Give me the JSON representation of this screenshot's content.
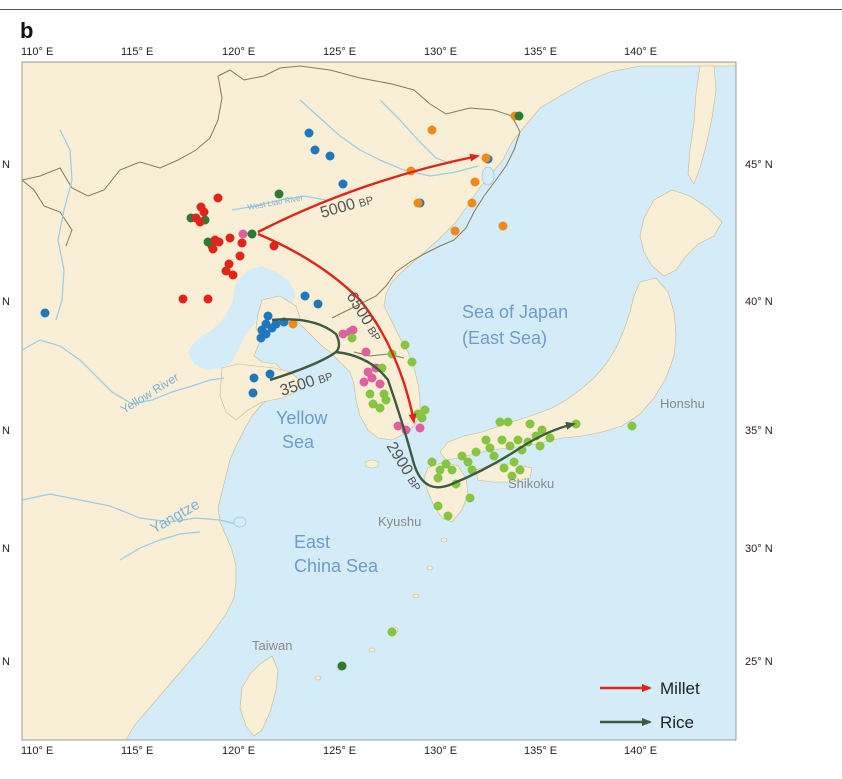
{
  "panel_label": "b",
  "longitude_ticks": [
    "110° E",
    "115° E",
    "120° E",
    "125° E",
    "130° E",
    "135° E",
    "140° E"
  ],
  "latitude_ticks_left": [
    "N",
    "N",
    "N",
    "N",
    "N"
  ],
  "latitude_ticks_right": [
    "45° N",
    "40° N",
    "35° N",
    "30° N",
    "25° N"
  ],
  "place_labels": {
    "sea_of_japan_1": "Sea of Japan",
    "sea_of_japan_2": "(East Sea)",
    "yellow_sea_1": "Yellow",
    "yellow_sea_2": "Sea",
    "east_china_sea_1": "East",
    "east_china_sea_2": "China Sea",
    "honshu": "Honshu",
    "shikoku": "Shikoku",
    "kyushu": "Kyushu",
    "taiwan": "Taiwan",
    "yellow_river": "Yellow River",
    "yangtze": "Yangtze",
    "west_liao_river": "West Liao River"
  },
  "route_labels": {
    "r5000": "5000",
    "r6500": "6500",
    "r3500": "3500",
    "r2900": "2900",
    "bp": "BP"
  },
  "legend": {
    "millet": "Millet",
    "rice": "Rice"
  },
  "colors": {
    "land": "#f8efd6",
    "sea": "#d4ebf8",
    "millet": "#e2231a",
    "rice": "#3e5a42",
    "blue_sites": "#1f78be",
    "orange_sites": "#ef8a1a",
    "pink_sites": "#e0609e",
    "lightgreen_sites": "#86c441",
    "darkgreen_sites": "#2d7a34"
  }
}
